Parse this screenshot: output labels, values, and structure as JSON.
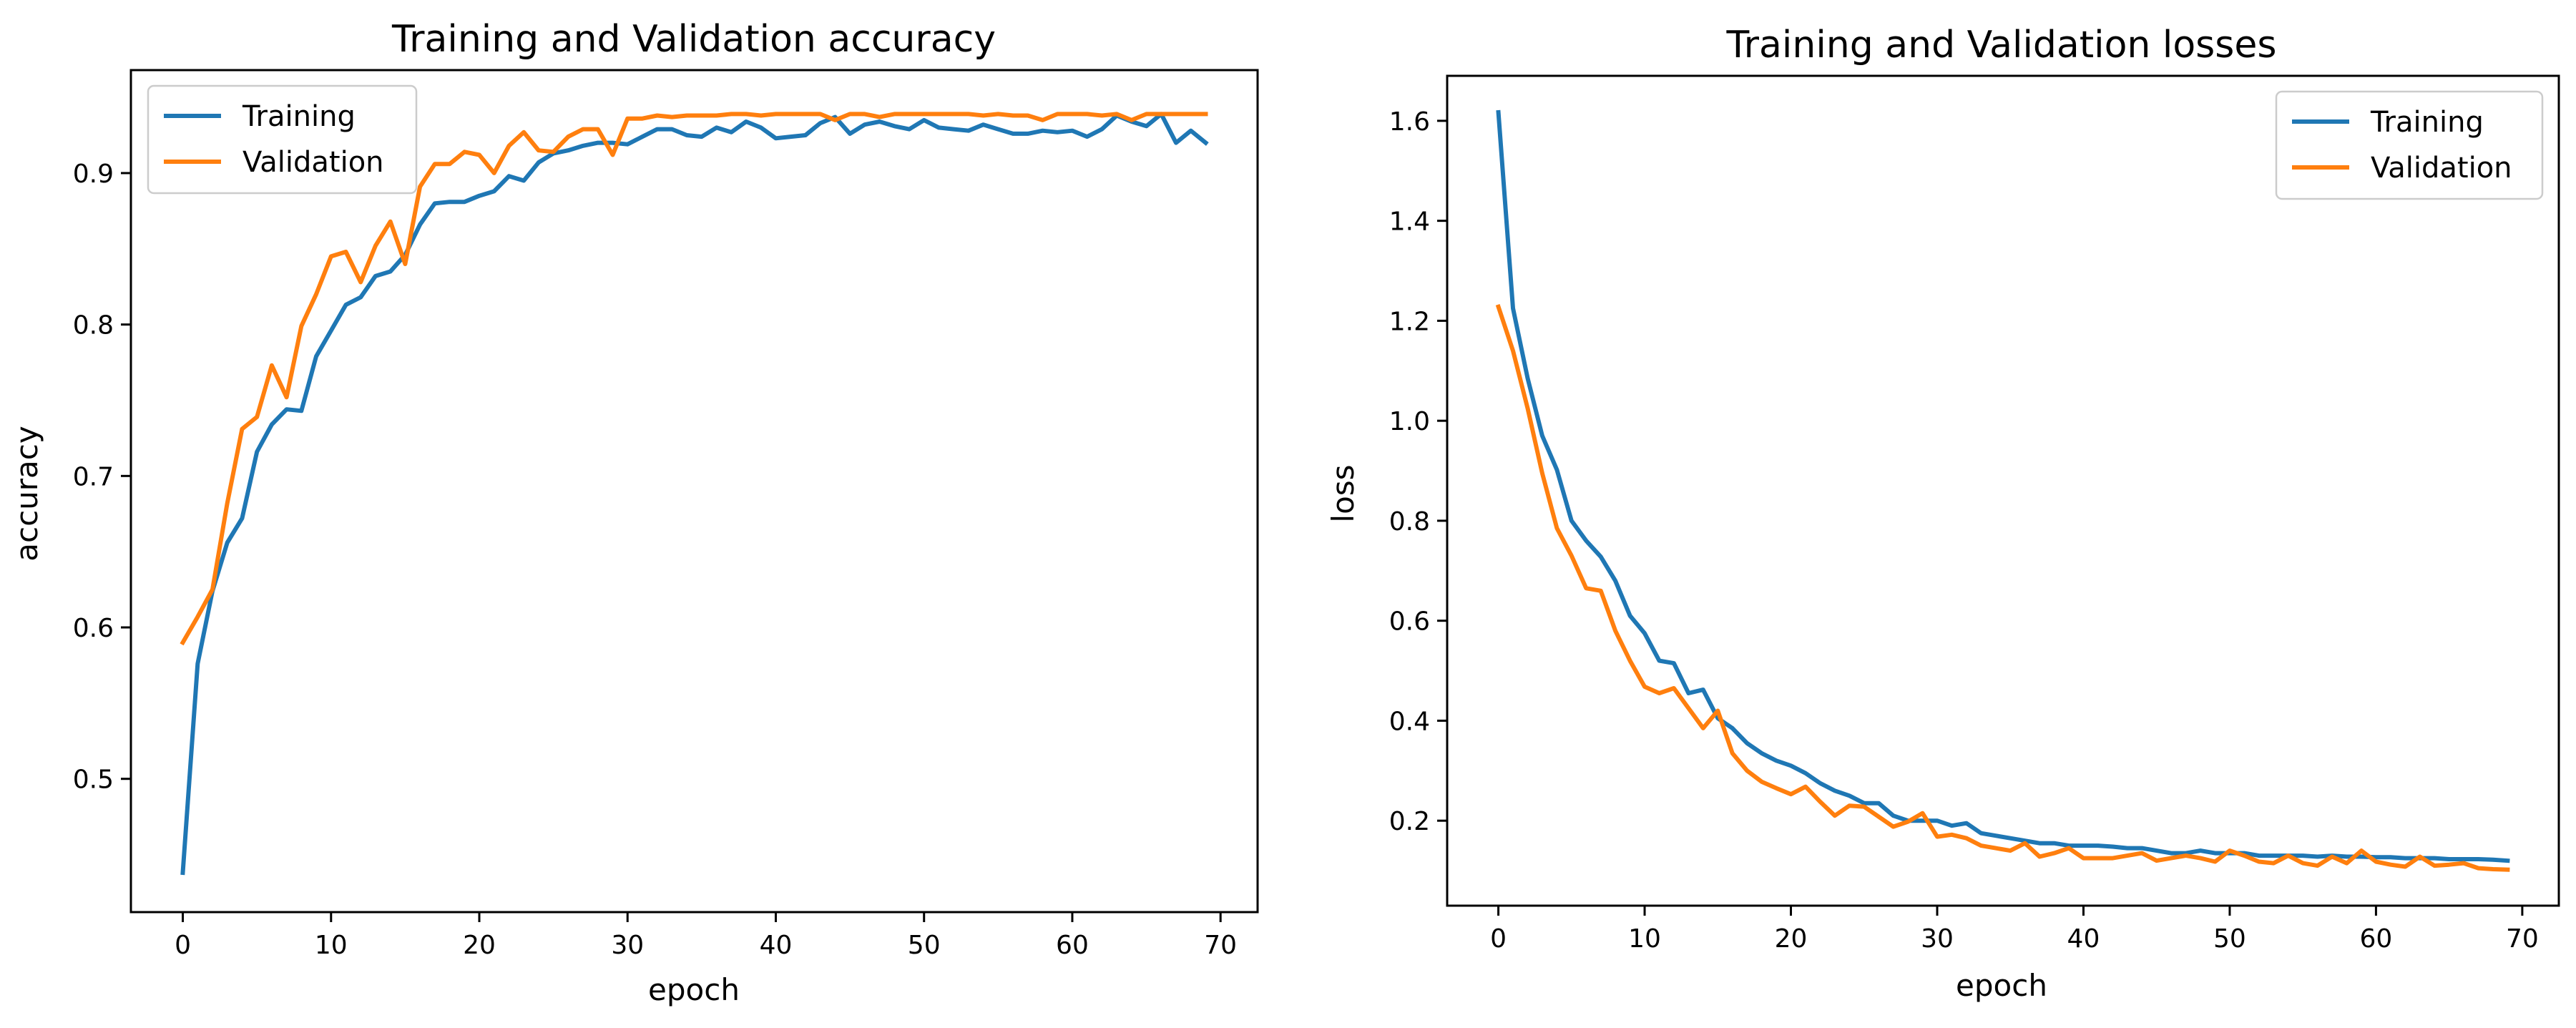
{
  "colors": {
    "training": "#1f77b4",
    "validation": "#ff7f0e"
  },
  "chart_data": [
    {
      "type": "line",
      "title": "Training and Validation accuracy",
      "xlabel": "epoch",
      "ylabel": "accuracy",
      "xlim": [
        -3.5,
        72.5
      ],
      "ylim": [
        0.412,
        0.968
      ],
      "xticks": [
        0,
        10,
        20,
        30,
        40,
        50,
        60,
        70
      ],
      "xtick_labels": [
        "0",
        "10",
        "20",
        "30",
        "40",
        "50",
        "60",
        "70"
      ],
      "yticks": [
        0.5,
        0.6,
        0.7,
        0.8,
        0.9
      ],
      "ytick_labels": [
        "0.5",
        "0.6",
        "0.7",
        "0.8",
        "0.9"
      ],
      "grid": false,
      "legend_position": "upper left",
      "series": [
        {
          "name": "Training",
          "x": [
            0,
            1,
            2,
            3,
            4,
            5,
            6,
            7,
            8,
            9,
            10,
            11,
            12,
            13,
            14,
            15,
            16,
            17,
            18,
            19,
            20,
            21,
            22,
            23,
            24,
            25,
            26,
            27,
            28,
            29,
            30,
            31,
            32,
            33,
            34,
            35,
            36,
            37,
            38,
            39,
            40,
            41,
            42,
            43,
            44,
            45,
            46,
            47,
            48,
            49,
            50,
            51,
            52,
            53,
            54,
            55,
            56,
            57,
            58,
            59,
            60,
            61,
            62,
            63,
            64,
            65,
            66,
            67,
            68,
            69
          ],
          "values": [
            0.438,
            0.576,
            0.624,
            0.656,
            0.672,
            0.716,
            0.734,
            0.744,
            0.743,
            0.779,
            0.796,
            0.813,
            0.818,
            0.832,
            0.835,
            0.846,
            0.866,
            0.88,
            0.881,
            0.881,
            0.885,
            0.888,
            0.898,
            0.895,
            0.907,
            0.913,
            0.915,
            0.918,
            0.92,
            0.92,
            0.919,
            0.924,
            0.929,
            0.929,
            0.925,
            0.924,
            0.93,
            0.927,
            0.934,
            0.93,
            0.923,
            0.924,
            0.925,
            0.933,
            0.937,
            0.926,
            0.932,
            0.934,
            0.931,
            0.929,
            0.935,
            0.93,
            0.929,
            0.928,
            0.932,
            0.929,
            0.926,
            0.926,
            0.928,
            0.927,
            0.928,
            0.924,
            0.929,
            0.938,
            0.934,
            0.931,
            0.939,
            0.92,
            0.928,
            0.92
          ]
        },
        {
          "name": "Validation",
          "x": [
            0,
            1,
            2,
            3,
            4,
            5,
            6,
            7,
            8,
            9,
            10,
            11,
            12,
            13,
            14,
            15,
            16,
            17,
            18,
            19,
            20,
            21,
            22,
            23,
            24,
            25,
            26,
            27,
            28,
            29,
            30,
            31,
            32,
            33,
            34,
            35,
            36,
            37,
            38,
            39,
            40,
            41,
            42,
            43,
            44,
            45,
            46,
            47,
            48,
            49,
            50,
            51,
            52,
            53,
            54,
            55,
            56,
            57,
            58,
            59,
            60,
            61,
            62,
            63,
            64,
            65,
            66,
            67,
            68,
            69
          ],
          "values": [
            0.59,
            0.607,
            0.625,
            0.682,
            0.731,
            0.739,
            0.773,
            0.752,
            0.799,
            0.82,
            0.845,
            0.848,
            0.828,
            0.852,
            0.868,
            0.84,
            0.891,
            0.906,
            0.906,
            0.914,
            0.912,
            0.9,
            0.918,
            0.927,
            0.915,
            0.914,
            0.924,
            0.929,
            0.929,
            0.912,
            0.936,
            0.936,
            0.938,
            0.937,
            0.938,
            0.938,
            0.938,
            0.939,
            0.939,
            0.938,
            0.939,
            0.939,
            0.939,
            0.939,
            0.935,
            0.939,
            0.939,
            0.937,
            0.939,
            0.939,
            0.939,
            0.939,
            0.939,
            0.939,
            0.938,
            0.939,
            0.938,
            0.938,
            0.935,
            0.939,
            0.939,
            0.939,
            0.938,
            0.939,
            0.935,
            0.939,
            0.939,
            0.939,
            0.939,
            0.939
          ]
        }
      ]
    },
    {
      "type": "line",
      "title": "Training and Validation losses",
      "xlabel": "epoch",
      "ylabel": "loss",
      "xlim": [
        -3.5,
        72.5
      ],
      "ylim": [
        0.03,
        1.69
      ],
      "xticks": [
        0,
        10,
        20,
        30,
        40,
        50,
        60,
        70
      ],
      "xtick_labels": [
        "0",
        "10",
        "20",
        "30",
        "40",
        "50",
        "60",
        "70"
      ],
      "yticks": [
        0.2,
        0.4,
        0.6,
        0.8,
        1.0,
        1.2,
        1.4,
        1.6
      ],
      "ytick_labels": [
        "0.2",
        "0.4",
        "0.6",
        "0.8",
        "1.0",
        "1.2",
        "1.4",
        "1.6"
      ],
      "grid": false,
      "legend_position": "upper right",
      "series": [
        {
          "name": "Training",
          "x": [
            0,
            1,
            2,
            3,
            4,
            5,
            6,
            7,
            8,
            9,
            10,
            11,
            12,
            13,
            14,
            15,
            16,
            17,
            18,
            19,
            20,
            21,
            22,
            23,
            24,
            25,
            26,
            27,
            28,
            29,
            30,
            31,
            32,
            33,
            34,
            35,
            36,
            37,
            38,
            39,
            40,
            41,
            42,
            43,
            44,
            45,
            46,
            47,
            48,
            49,
            50,
            51,
            52,
            53,
            54,
            55,
            56,
            57,
            58,
            59,
            60,
            61,
            62,
            63,
            64,
            65,
            66,
            67,
            68,
            69
          ],
          "values": [
            1.617,
            1.225,
            1.085,
            0.97,
            0.902,
            0.8,
            0.76,
            0.728,
            0.68,
            0.61,
            0.575,
            0.52,
            0.515,
            0.455,
            0.462,
            0.405,
            0.385,
            0.355,
            0.335,
            0.32,
            0.31,
            0.295,
            0.275,
            0.26,
            0.25,
            0.235,
            0.235,
            0.21,
            0.2,
            0.2,
            0.2,
            0.19,
            0.195,
            0.175,
            0.17,
            0.165,
            0.16,
            0.155,
            0.155,
            0.15,
            0.15,
            0.15,
            0.148,
            0.145,
            0.145,
            0.14,
            0.135,
            0.135,
            0.14,
            0.135,
            0.135,
            0.135,
            0.13,
            0.13,
            0.13,
            0.13,
            0.128,
            0.13,
            0.128,
            0.128,
            0.127,
            0.127,
            0.125,
            0.125,
            0.125,
            0.123,
            0.123,
            0.123,
            0.122,
            0.12
          ]
        },
        {
          "name": "Validation",
          "x": [
            0,
            1,
            2,
            3,
            4,
            5,
            6,
            7,
            8,
            9,
            10,
            11,
            12,
            13,
            14,
            15,
            16,
            17,
            18,
            19,
            20,
            21,
            22,
            23,
            24,
            25,
            26,
            27,
            28,
            29,
            30,
            31,
            32,
            33,
            34,
            35,
            36,
            37,
            38,
            39,
            40,
            41,
            42,
            43,
            44,
            45,
            46,
            47,
            48,
            49,
            50,
            51,
            52,
            53,
            54,
            55,
            56,
            57,
            58,
            59,
            60,
            61,
            62,
            63,
            64,
            65,
            66,
            67,
            68,
            69
          ],
          "values": [
            1.228,
            1.14,
            1.025,
            0.895,
            0.785,
            0.73,
            0.665,
            0.66,
            0.58,
            0.52,
            0.468,
            0.455,
            0.465,
            0.425,
            0.385,
            0.42,
            0.335,
            0.3,
            0.278,
            0.265,
            0.253,
            0.268,
            0.238,
            0.21,
            0.23,
            0.228,
            0.208,
            0.188,
            0.198,
            0.215,
            0.168,
            0.172,
            0.165,
            0.15,
            0.145,
            0.14,
            0.155,
            0.128,
            0.135,
            0.145,
            0.125,
            0.125,
            0.125,
            0.13,
            0.135,
            0.12,
            0.125,
            0.13,
            0.125,
            0.118,
            0.14,
            0.13,
            0.118,
            0.115,
            0.13,
            0.115,
            0.11,
            0.128,
            0.115,
            0.14,
            0.118,
            0.112,
            0.108,
            0.128,
            0.11,
            0.112,
            0.115,
            0.105,
            0.103,
            0.102
          ]
        }
      ]
    }
  ]
}
